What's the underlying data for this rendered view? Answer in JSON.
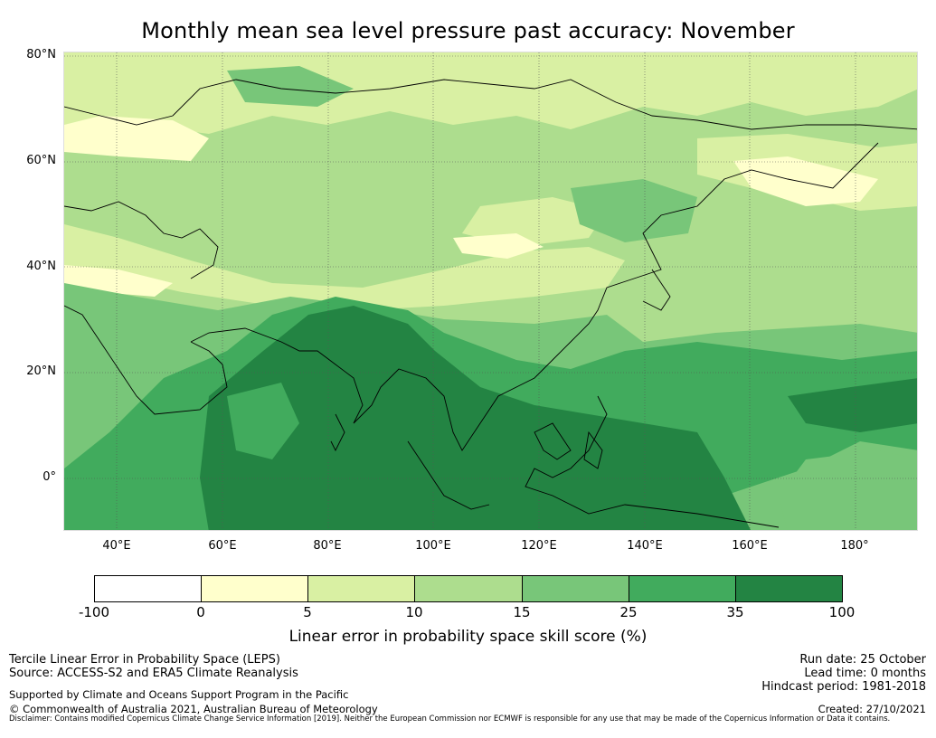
{
  "title": "Monthly mean sea level pressure past accuracy: November",
  "map": {
    "lat_labels": [
      "80°N",
      "60°N",
      "40°N",
      "20°N",
      "0°"
    ],
    "lon_labels": [
      "40°E",
      "60°E",
      "80°E",
      "100°E",
      "120°E",
      "140°E",
      "160°E",
      "180°"
    ],
    "extent": {
      "lon_min": 29,
      "lon_max": 191,
      "lat_min": -10,
      "lat_max": 81
    }
  },
  "colorbar": {
    "ticks": [
      "-100",
      "0",
      "5",
      "10",
      "15",
      "25",
      "35",
      "100"
    ],
    "colors": [
      "#ffffff",
      "#ffffcc",
      "#d9f0a3",
      "#addd8e",
      "#78c679",
      "#41ab5d",
      "#238443"
    ],
    "label": "Linear error in probability space skill score (%)"
  },
  "footer": {
    "left_line1": "Tercile Linear Error in Probability Space (LEPS)",
    "left_line2": "Source: ACCESS-S2 and ERA5 Climate Reanalysis",
    "supported": "Supported by Climate and Oceans Support Program in the Pacific",
    "copyright": "© Commonwealth of Australia 2021, Australian Bureau of Meteorology",
    "run_date": "Run date: 25 October",
    "lead_time": "Lead time: 0 months",
    "hindcast": "Hindcast period: 1981-2018",
    "created": "Created: 27/10/2021",
    "disclaimer": "Disclaimer: Contains modified Copernicus Climate Change Service Information [2019]. Neither the European Commission nor ECMWF is responsible for any use that may be made of the Copernicus Information or Data it contains."
  }
}
